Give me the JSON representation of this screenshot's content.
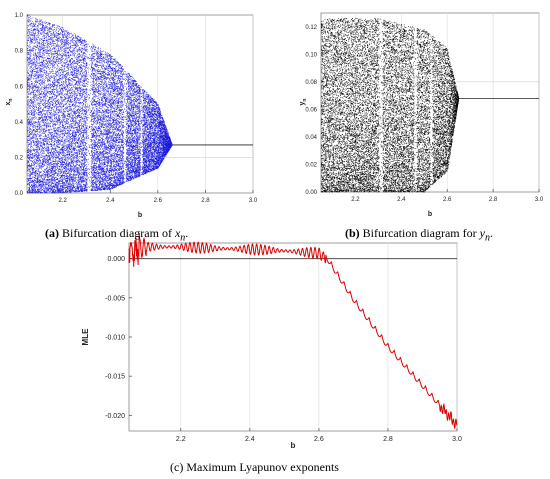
{
  "chart_data": [
    {
      "type": "scatter",
      "id": "a",
      "xlabel": "b",
      "ylabel": "x_n",
      "xlim": [
        2.05,
        3.0
      ],
      "ylim": [
        0.0,
        1.0
      ],
      "xticks": [
        2.2,
        2.4,
        2.6,
        2.8,
        3.0
      ],
      "xtick_labels": [
        "2.2",
        "2.4",
        "2.6",
        "2.8",
        "3.0"
      ],
      "yticks": [
        0.0,
        0.2,
        0.4,
        0.6,
        0.8,
        1.0
      ],
      "ytick_labels": [
        "0.0",
        "0.2",
        "0.4",
        "0.6",
        "0.8",
        "1.0"
      ],
      "color": "#1a1adc",
      "fixed_point": 0.27,
      "chaotic_envelope": [
        {
          "b": 2.05,
          "upper": 1.0,
          "lower": 0.0
        },
        {
          "b": 2.2,
          "upper": 0.93,
          "lower": 0.0
        },
        {
          "b": 2.4,
          "upper": 0.78,
          "lower": 0.02
        },
        {
          "b": 2.6,
          "upper": 0.5,
          "lower": 0.14
        },
        {
          "b": 2.66,
          "upper": 0.27,
          "lower": 0.27
        }
      ],
      "grid": true
    },
    {
      "type": "scatter",
      "id": "b",
      "xlabel": "b",
      "ylabel": "y_n",
      "xlim": [
        2.05,
        3.0
      ],
      "ylim": [
        0.0,
        0.13
      ],
      "xticks": [
        2.2,
        2.4,
        2.6,
        2.8,
        3.0
      ],
      "xtick_labels": [
        "2.2",
        "2.4",
        "2.6",
        "2.8",
        "3.0"
      ],
      "yticks": [
        0.0,
        0.02,
        0.04,
        0.06,
        0.08,
        0.1,
        0.12
      ],
      "ytick_labels": [
        "0.00",
        "0.02",
        "0.04",
        "0.06",
        "0.08",
        "0.10",
        "0.12"
      ],
      "color": "#000000",
      "fixed_point": 0.068,
      "chaotic_envelope": [
        {
          "b": 2.05,
          "upper": 0.126,
          "lower": 0.0
        },
        {
          "b": 2.3,
          "upper": 0.126,
          "lower": 0.0
        },
        {
          "b": 2.5,
          "upper": 0.118,
          "lower": 0.0
        },
        {
          "b": 2.6,
          "upper": 0.104,
          "lower": 0.015
        },
        {
          "b": 2.65,
          "upper": 0.068,
          "lower": 0.068
        }
      ],
      "grid": true
    },
    {
      "type": "line",
      "id": "c",
      "xlabel": "b",
      "ylabel": "MLE",
      "xlim": [
        2.05,
        3.0
      ],
      "ylim": [
        -0.022,
        0.002
      ],
      "xticks": [
        2.2,
        2.4,
        2.6,
        2.8,
        3.0
      ],
      "xtick_labels": [
        "2.2",
        "2.4",
        "2.6",
        "2.8",
        "3.0"
      ],
      "yticks": [
        0.0,
        -0.005,
        -0.01,
        -0.015,
        -0.02
      ],
      "ytick_labels": [
        "0.000",
        "-0.005",
        "-0.010",
        "-0.015",
        "-0.020"
      ],
      "series": [
        {
          "color": "#dd0000",
          "x": [
            2.05,
            2.1,
            2.2,
            2.3,
            2.4,
            2.5,
            2.6,
            2.62,
            2.7,
            2.8,
            2.9,
            3.0
          ],
          "values": [
            0.001,
            0.0015,
            0.0015,
            0.0013,
            0.0012,
            0.001,
            0.0007,
            0.0,
            -0.0055,
            -0.0115,
            -0.0165,
            -0.0215
          ]
        }
      ],
      "zero_line": true,
      "grid": true
    }
  ],
  "captions": {
    "a": {
      "label": "(a)",
      "text": "Bifurcation diagram of",
      "var_base": "x",
      "var_sub": "n",
      "tail": "."
    },
    "b": {
      "label": "(b)",
      "text": "Bifurcation diagram for",
      "var_base": "y",
      "var_sub": "n",
      "tail": "."
    },
    "c": {
      "text": "(c) Maximum Lyapunov exponents"
    }
  }
}
